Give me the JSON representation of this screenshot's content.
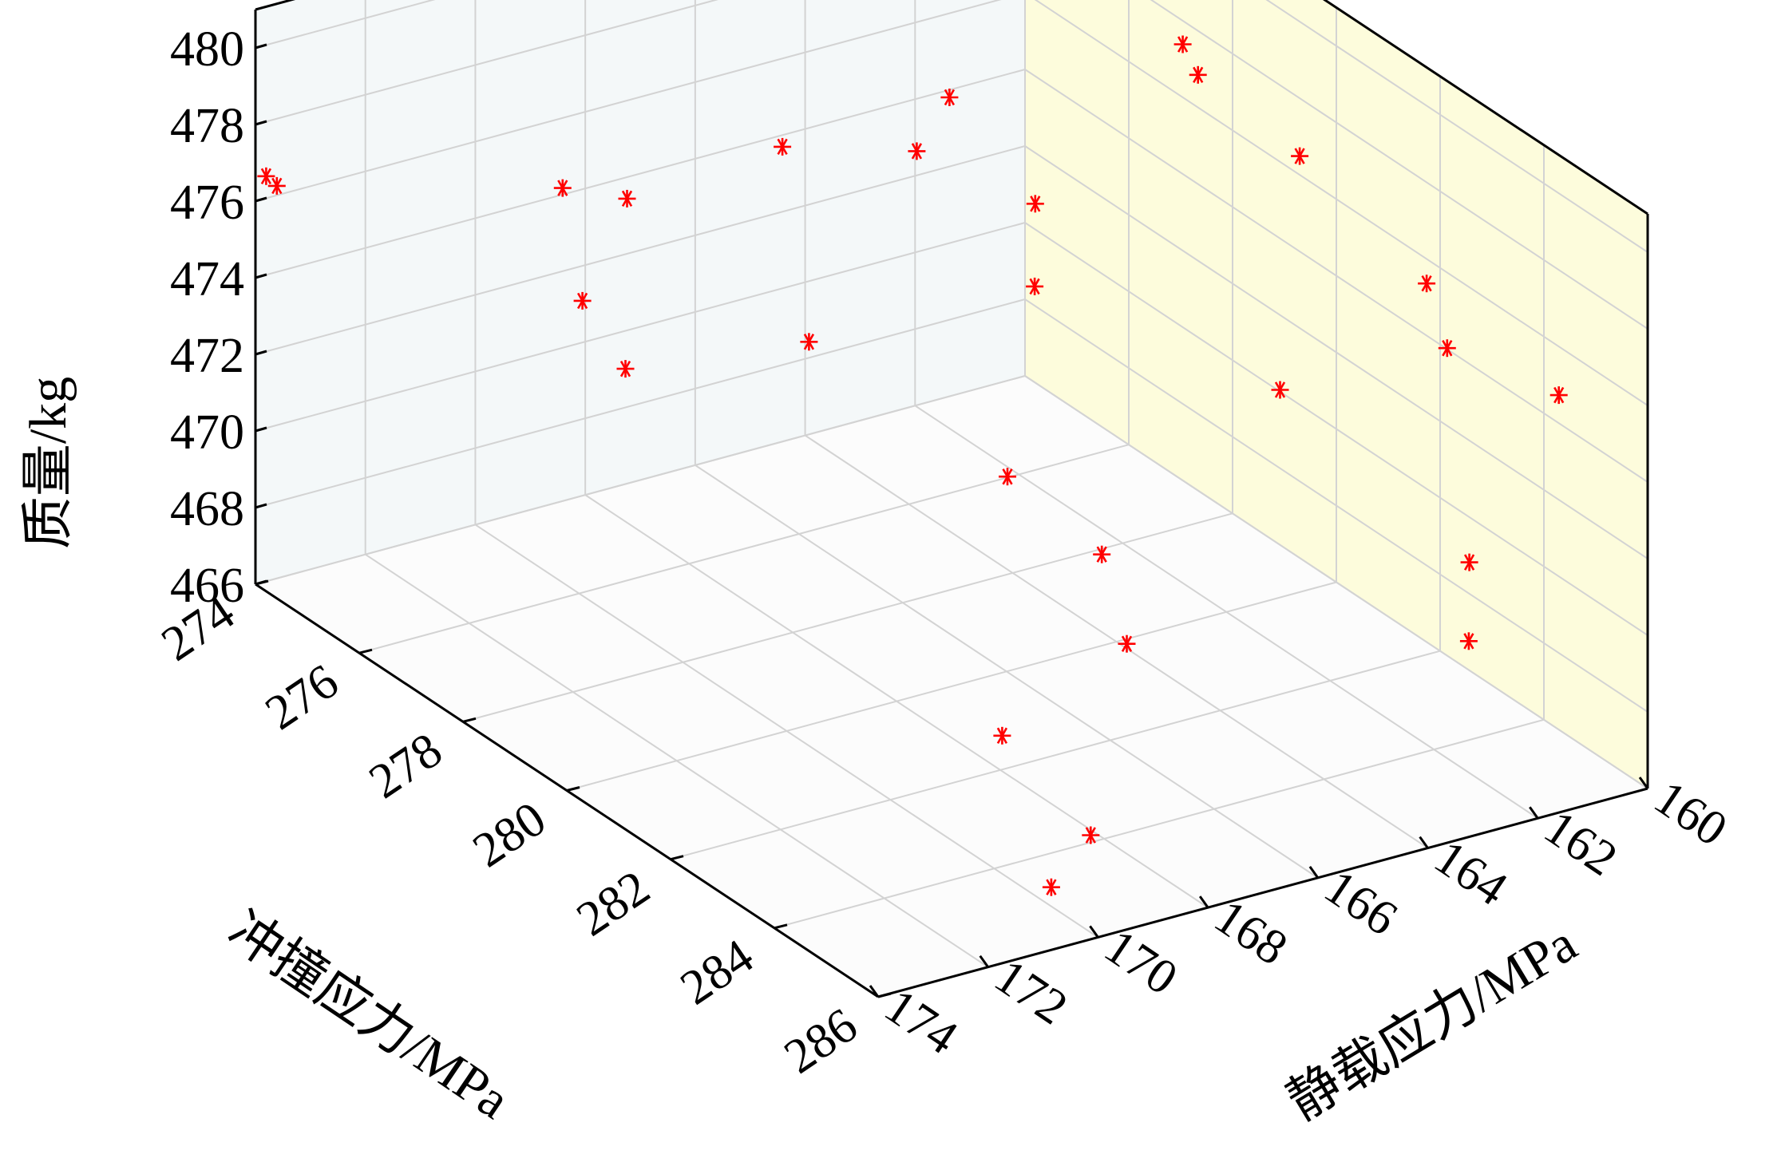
{
  "chart_data": {
    "type": "scatter",
    "title": "",
    "xlabel": "冲撞应力/MPa",
    "ylabel": "静载应力/MPa",
    "zlabel": "质量/kg",
    "xlim": [
      274,
      286
    ],
    "ylim": [
      160,
      174
    ],
    "zlim": [
      466,
      481
    ],
    "x_ticks": [
      "274",
      "276",
      "278",
      "280",
      "282",
      "284",
      "286"
    ],
    "y_ticks": [
      "160",
      "162",
      "164",
      "166",
      "168",
      "170",
      "172",
      "174"
    ],
    "z_ticks": [
      "466",
      "468",
      "470",
      "472",
      "474",
      "476",
      "478",
      "480"
    ],
    "grid": true,
    "marker": "asterisk",
    "colors": {
      "marker": "#ff0000",
      "back_wall": "#f4f8f9",
      "side_wall": "#fdfcdc",
      "floor": "#fcfcfc",
      "grid": "#d3d3d3"
    },
    "points": [
      {
        "x": 274.1,
        "y": 173.9,
        "z": 476.7
      },
      {
        "x": 274.2,
        "y": 173.8,
        "z": 476.5
      },
      {
        "x": 276.0,
        "y": 170.3,
        "z": 476.7
      },
      {
        "x": 276.5,
        "y": 169.6,
        "z": 476.6
      },
      {
        "x": 276.7,
        "y": 170.6,
        "z": 474.5
      },
      {
        "x": 277.0,
        "y": 170.1,
        "z": 472.8
      },
      {
        "x": 277.8,
        "y": 168.0,
        "z": 478.5
      },
      {
        "x": 278.1,
        "y": 167.8,
        "z": 473.6
      },
      {
        "x": 278.9,
        "y": 166.0,
        "z": 480.0
      },
      {
        "x": 278.8,
        "y": 166.5,
        "z": 478.7
      },
      {
        "x": 279.6,
        "y": 165.1,
        "z": 477.5
      },
      {
        "x": 279.8,
        "y": 165.3,
        "z": 475.6
      },
      {
        "x": 279.7,
        "y": 165.7,
        "z": 470.7
      },
      {
        "x": 279.9,
        "y": 162.7,
        "z": 481.0
      },
      {
        "x": 280.3,
        "y": 162.8,
        "z": 480.6
      },
      {
        "x": 281.2,
        "y": 161.8,
        "z": 478.9
      },
      {
        "x": 282.2,
        "y": 163.1,
        "z": 474.2
      },
      {
        "x": 282.8,
        "y": 161.0,
        "z": 476.7
      },
      {
        "x": 283.3,
        "y": 161.1,
        "z": 475.5
      },
      {
        "x": 284.5,
        "y": 160.2,
        "z": 475.0
      },
      {
        "x": 285.0,
        "y": 162.3,
        "z": 471.9
      },
      {
        "x": 285.2,
        "y": 162.5,
        "z": 470.1
      },
      {
        "x": 281.2,
        "y": 165.4,
        "z": 469.9
      },
      {
        "x": 282.0,
        "y": 165.7,
        "z": 468.4
      },
      {
        "x": 283.2,
        "y": 169.1,
        "z": 468.4
      },
      {
        "x": 284.8,
        "y": 169.0,
        "z": 467.2
      },
      {
        "x": 285.1,
        "y": 170.0,
        "z": 466.5
      }
    ]
  }
}
